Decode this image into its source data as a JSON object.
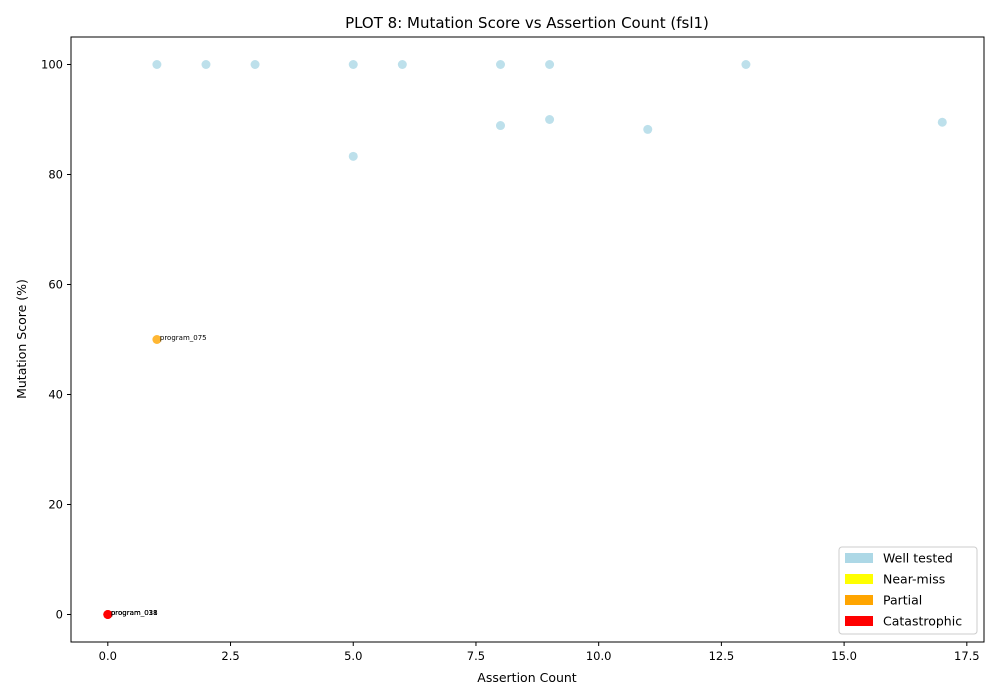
{
  "chart_data": {
    "type": "scatter",
    "title": "PLOT 8: Mutation Score vs Assertion Count (fsl1)",
    "xlabel": "Assertion Count",
    "ylabel": "Mutation Score (%)",
    "xlim": [
      -0.75,
      17.85
    ],
    "ylim": [
      -5,
      105
    ],
    "xticks": [
      0.0,
      2.5,
      5.0,
      7.5,
      10.0,
      12.5,
      15.0,
      17.5
    ],
    "xtick_labels": [
      "0.0",
      "2.5",
      "5.0",
      "7.5",
      "10.0",
      "12.5",
      "15.0",
      "17.5"
    ],
    "yticks": [
      0,
      20,
      40,
      60,
      80,
      100
    ],
    "ytick_labels": [
      "0",
      "20",
      "40",
      "60",
      "80",
      "100"
    ],
    "grid": false,
    "legend_placement": "bottom-right",
    "series": [
      {
        "name": "Well tested",
        "color": "#add8e6",
        "points": [
          {
            "x": 1,
            "y": 100
          },
          {
            "x": 2,
            "y": 100
          },
          {
            "x": 3,
            "y": 100
          },
          {
            "x": 5,
            "y": 100
          },
          {
            "x": 6,
            "y": 100
          },
          {
            "x": 8,
            "y": 100
          },
          {
            "x": 9,
            "y": 100
          },
          {
            "x": 13,
            "y": 100
          },
          {
            "x": 5,
            "y": 83.3
          },
          {
            "x": 8,
            "y": 88.9
          },
          {
            "x": 9,
            "y": 90.0
          },
          {
            "x": 11,
            "y": 88.2
          },
          {
            "x": 17,
            "y": 89.5
          }
        ]
      },
      {
        "name": "Near-miss",
        "color": "#ffff00",
        "points": []
      },
      {
        "name": "Partial",
        "color": "#ffa500",
        "points": [
          {
            "x": 1,
            "y": 50,
            "label": "program_075"
          }
        ]
      },
      {
        "name": "Catastrophic",
        "color": "#ff0000",
        "points": [
          {
            "x": 0,
            "y": 0,
            "label": "program_031"
          },
          {
            "x": 0,
            "y": 0,
            "label": "program_038"
          },
          {
            "x": 0,
            "y": 0,
            "label": "program_018"
          }
        ]
      }
    ]
  }
}
